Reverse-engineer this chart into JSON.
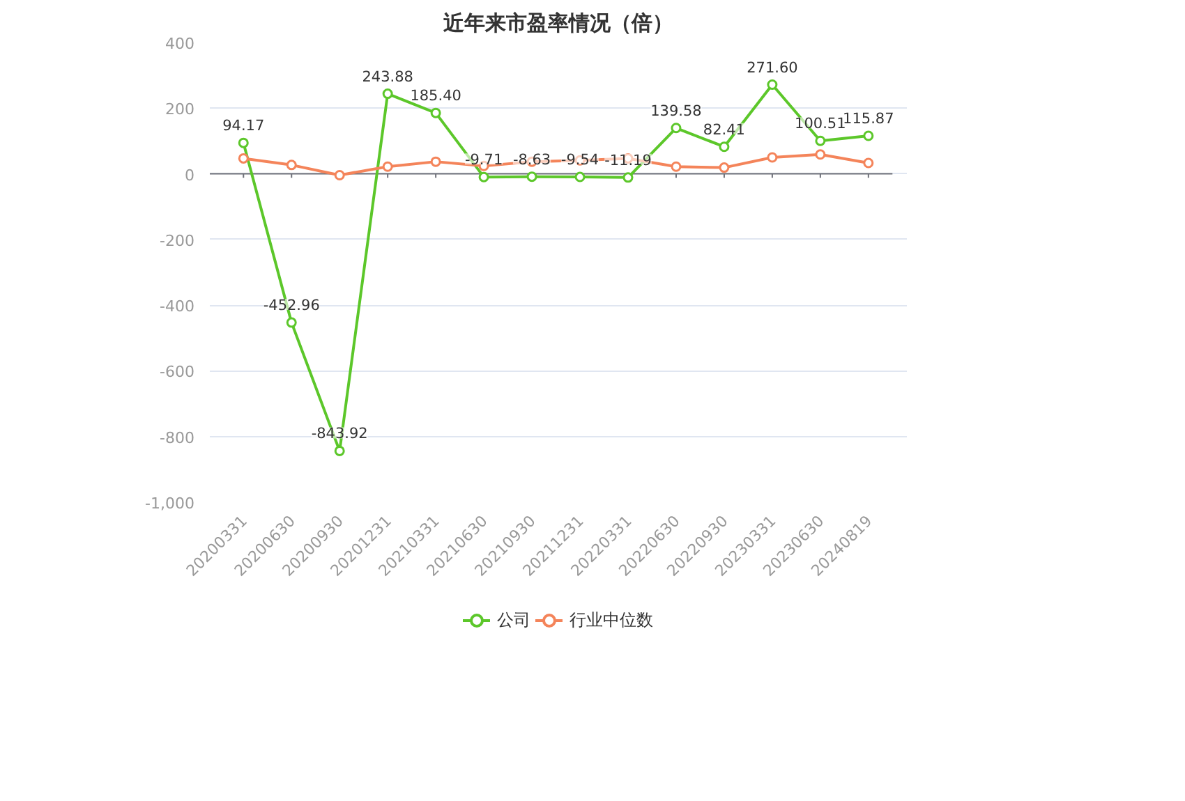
{
  "chart_data": {
    "type": "line",
    "title": "近年来市盈率情况（倍）",
    "categories": [
      "20200331",
      "20200630",
      "20200930",
      "20201231",
      "20210331",
      "20210630",
      "20210930",
      "20211231",
      "20220331",
      "20220630",
      "20220930",
      "20230331",
      "20230630",
      "20240819"
    ],
    "series": [
      {
        "name": "公司",
        "color": "#5cc72a",
        "values": [
          94.17,
          -452.96,
          -843.92,
          243.88,
          185.4,
          -9.71,
          -8.63,
          -9.54,
          -11.19,
          139.58,
          82.41,
          271.6,
          100.51,
          115.87
        ],
        "value_labels": [
          "94.17",
          "-452.96",
          "-843.92",
          "243.88",
          "185.40",
          "-9.71",
          "-8.63",
          "-9.54",
          "-11.19",
          "139.58",
          "82.41",
          "271.60",
          "100.51",
          "115.87"
        ]
      },
      {
        "name": "行业中位数",
        "color": "#f4845a",
        "values": [
          47,
          27,
          -4,
          22,
          37,
          24,
          37,
          41,
          47,
          22,
          19,
          50,
          59,
          33
        ]
      }
    ],
    "ylim": [
      -1000,
      400
    ],
    "yticks": [
      {
        "value": -1000,
        "label": "-1,000"
      },
      -800,
      -600,
      -400,
      -200,
      0,
      200,
      400
    ],
    "grid": "y",
    "legend": "bottom",
    "marker": "circle",
    "line_style": "solid"
  }
}
